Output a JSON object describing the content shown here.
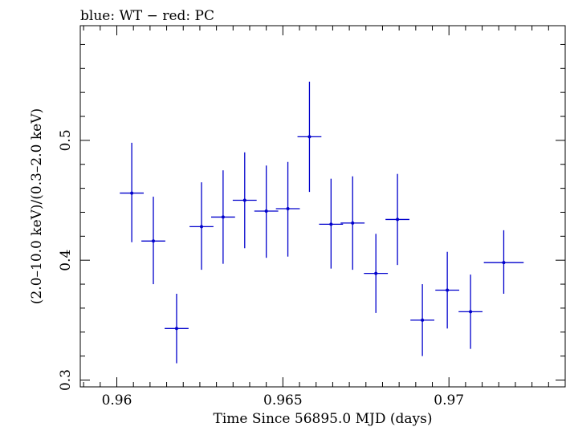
{
  "chart_data": {
    "type": "scatter",
    "title": "blue: WT − red: PC",
    "xlabel": "Time Since 56895.0 MJD (days)",
    "ylabel": "(2.0–10.0 keV)/(0.3–2.0 keV)",
    "xlim": [
      0.9589,
      0.9735
    ],
    "ylim": [
      0.2943,
      0.5957
    ],
    "xticks": [
      0.96,
      0.965,
      0.97
    ],
    "xtick_labels": [
      "0.96",
      "0.965",
      "0.97"
    ],
    "yticks": [
      0.3,
      0.4,
      0.5
    ],
    "ytick_labels": [
      "0.3",
      "0.4",
      "0.5"
    ],
    "grid": false,
    "series": [
      {
        "color": "#0000cc",
        "points": [
          {
            "x": 0.96045,
            "xerr": 0.00036,
            "y": 0.456,
            "ylo": 0.415,
            "yhi": 0.498
          },
          {
            "x": 0.9611,
            "xerr": 0.00036,
            "y": 0.416,
            "ylo": 0.38,
            "yhi": 0.453
          },
          {
            "x": 0.9618,
            "xerr": 0.00036,
            "y": 0.343,
            "ylo": 0.314,
            "yhi": 0.372
          },
          {
            "x": 0.96255,
            "xerr": 0.00036,
            "y": 0.428,
            "ylo": 0.392,
            "yhi": 0.465
          },
          {
            "x": 0.9632,
            "xerr": 0.00036,
            "y": 0.436,
            "ylo": 0.397,
            "yhi": 0.475
          },
          {
            "x": 0.96385,
            "xerr": 0.00036,
            "y": 0.45,
            "ylo": 0.41,
            "yhi": 0.49
          },
          {
            "x": 0.9645,
            "xerr": 0.00036,
            "y": 0.441,
            "ylo": 0.402,
            "yhi": 0.479
          },
          {
            "x": 0.96515,
            "xerr": 0.00036,
            "y": 0.443,
            "ylo": 0.403,
            "yhi": 0.482
          },
          {
            "x": 0.9658,
            "xerr": 0.00036,
            "y": 0.503,
            "ylo": 0.457,
            "yhi": 0.549
          },
          {
            "x": 0.96645,
            "xerr": 0.00036,
            "y": 0.43,
            "ylo": 0.393,
            "yhi": 0.468
          },
          {
            "x": 0.9671,
            "xerr": 0.00036,
            "y": 0.431,
            "ylo": 0.392,
            "yhi": 0.47
          },
          {
            "x": 0.9678,
            "xerr": 0.00036,
            "y": 0.389,
            "ylo": 0.356,
            "yhi": 0.422
          },
          {
            "x": 0.96845,
            "xerr": 0.00036,
            "y": 0.434,
            "ylo": 0.396,
            "yhi": 0.472
          },
          {
            "x": 0.9692,
            "xerr": 0.00036,
            "y": 0.35,
            "ylo": 0.32,
            "yhi": 0.38
          },
          {
            "x": 0.96995,
            "xerr": 0.00036,
            "y": 0.375,
            "ylo": 0.343,
            "yhi": 0.407
          },
          {
            "x": 0.97065,
            "xerr": 0.00036,
            "y": 0.357,
            "ylo": 0.326,
            "yhi": 0.388
          },
          {
            "x": 0.97165,
            "xerr": 0.0006,
            "y": 0.398,
            "ylo": 0.372,
            "yhi": 0.425
          }
        ]
      }
    ]
  }
}
